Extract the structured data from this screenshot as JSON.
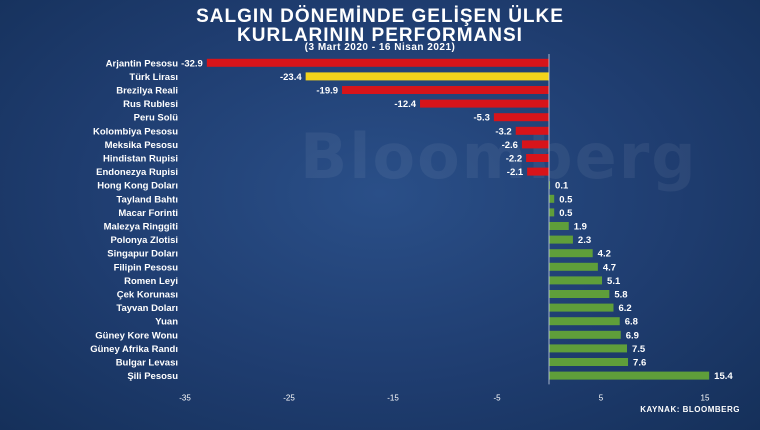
{
  "header": {
    "title_line1": "SALGIN DÖNEMİNDE GELİŞEN ÜLKE",
    "title_line2": "KURLARININ PERFORMANSI",
    "subtitle": "(3 Mart 2020 - 16 Nisan 2021)"
  },
  "watermark": "Bloomberg",
  "source": "KAYNAK: BLOOMBERG",
  "colors": {
    "negative": "#d7141a",
    "highlight": "#f2d31b",
    "positive": "#5f9e3a",
    "text": "#ffffff",
    "background": "#1f3d70"
  },
  "chart_data": {
    "type": "bar",
    "orientation": "horizontal",
    "title": "SALGIN DÖNEMİNDE GELİŞEN ÜLKE KURLARININ PERFORMANSI",
    "subtitle": "(3 Mart 2020 - 16 Nisan 2021)",
    "xlim": [
      -35,
      15
    ],
    "xticks": [
      -35,
      -25,
      -15,
      -5,
      5,
      15
    ],
    "grid": false,
    "highlight_category": "Türk Lirası",
    "categories": [
      "Arjantin Pesosu",
      "Türk Lirası",
      "Brezilya Reali",
      "Rus Rublesi",
      "Peru Solü",
      "Kolombiya Pesosu",
      "Meksika Pesosu",
      "Hindistan Rupisi",
      "Endonezya Rupisi",
      "Hong Kong Doları",
      "Tayland Bahtı",
      "Macar Forinti",
      "Malezya Ringgiti",
      "Polonya Zlotisi",
      "Singapur Doları",
      "Filipin Pesosu",
      "Romen Leyi",
      "Çek Korunası",
      "Tayvan Doları",
      "Yuan",
      "Güney Kore Wonu",
      "Güney Afrika Randı",
      "Bulgar Levası",
      "Şili Pesosu"
    ],
    "values": [
      -32.9,
      -23.4,
      -19.9,
      -12.4,
      -5.3,
      -3.2,
      -2.6,
      -2.2,
      -2.1,
      0.1,
      0.5,
      0.5,
      1.9,
      2.3,
      4.2,
      4.7,
      5.1,
      5.8,
      6.2,
      6.8,
      6.9,
      7.5,
      7.6,
      15.4
    ],
    "value_labels": [
      "-32.9",
      "-23.4",
      "-19.9",
      "-12.4",
      "-5.3",
      "-3.2",
      "-2.6",
      "-2.2",
      "-2.1",
      "0.1",
      "0.5",
      "0.5",
      "1.9",
      "2.3",
      "4.2",
      "4.7",
      "5.1",
      "5.8",
      "6.2",
      "6.8",
      "6.9",
      "7.5",
      "7.6",
      "15.4"
    ]
  }
}
